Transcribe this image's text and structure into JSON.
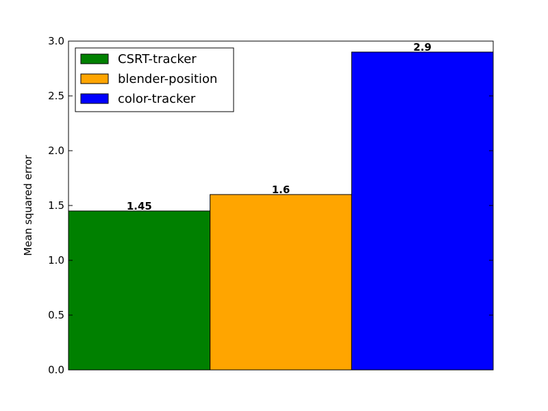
{
  "chart_data": {
    "type": "bar",
    "title": "",
    "xlabel": "",
    "ylabel": "Mean squared error",
    "ylim": [
      0,
      3.0
    ],
    "yticks": [
      0.0,
      0.5,
      1.0,
      1.5,
      2.0,
      2.5,
      3.0
    ],
    "ytick_labels": [
      "0.0",
      "0.5",
      "1.0",
      "1.5",
      "2.0",
      "2.5",
      "3.0"
    ],
    "grid": false,
    "legend_position": "top-left",
    "series": [
      {
        "name": "CSRT-tracker",
        "value": 1.45,
        "label": "1.45",
        "color": "#008000"
      },
      {
        "name": "blender-position",
        "value": 1.6,
        "label": "1.6",
        "color": "#ffa500"
      },
      {
        "name": "color-tracker",
        "value": 2.9,
        "label": "2.9",
        "color": "#0000ff"
      }
    ]
  }
}
